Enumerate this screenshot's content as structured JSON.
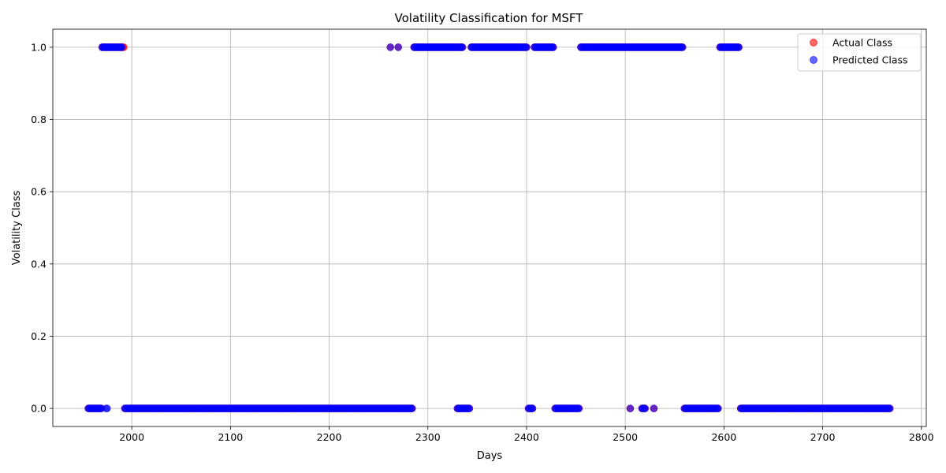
{
  "chart_data": {
    "type": "scatter",
    "title": "Volatility Classification for MSFT",
    "xlabel": "Days",
    "ylabel": "Volatility Class",
    "xlim": [
      1920,
      2805
    ],
    "ylim": [
      -0.05,
      1.05
    ],
    "x_ticks": [
      2000,
      2100,
      2200,
      2300,
      2400,
      2500,
      2600,
      2700,
      2800
    ],
    "y_ticks": [
      0.0,
      0.2,
      0.4,
      0.6,
      0.8,
      1.0
    ],
    "x_tick_labels": [
      "2000",
      "2100",
      "2200",
      "2300",
      "2400",
      "2500",
      "2600",
      "2700",
      "2800"
    ],
    "y_tick_labels": [
      "0.0",
      "0.2",
      "0.4",
      "0.6",
      "0.8",
      "1.0"
    ],
    "grid": true,
    "legend_position": "top-right",
    "series": [
      {
        "name": "Actual Class",
        "color": "#ff0000",
        "alpha": 0.6,
        "segments": [
          {
            "y": 0,
            "from": 1956,
            "to": 1969
          },
          {
            "y": 1,
            "from": 1970,
            "to": 1992
          },
          {
            "y": 0,
            "from": 1993,
            "to": 2284
          },
          {
            "y": 1,
            "from": 2262,
            "to": 2262
          },
          {
            "y": 1,
            "from": 2270,
            "to": 2270
          },
          {
            "y": 1,
            "from": 2286,
            "to": 2335
          },
          {
            "y": 0,
            "from": 2330,
            "to": 2342
          },
          {
            "y": 1,
            "from": 2344,
            "to": 2400
          },
          {
            "y": 0,
            "from": 2402,
            "to": 2406
          },
          {
            "y": 1,
            "from": 2408,
            "to": 2427
          },
          {
            "y": 0,
            "from": 2429,
            "to": 2453
          },
          {
            "y": 1,
            "from": 2455,
            "to": 2558
          },
          {
            "y": 0,
            "from": 2505,
            "to": 2505
          },
          {
            "y": 0,
            "from": 2517,
            "to": 2520
          },
          {
            "y": 0,
            "from": 2529,
            "to": 2529
          },
          {
            "y": 0,
            "from": 2560,
            "to": 2594
          },
          {
            "y": 1,
            "from": 2596,
            "to": 2615
          },
          {
            "y": 0,
            "from": 2617,
            "to": 2768
          }
        ]
      },
      {
        "name": "Predicted Class",
        "color": "#0000ff",
        "alpha": 0.6,
        "segments": [
          {
            "y": 0,
            "from": 1956,
            "to": 1969
          },
          {
            "y": 1,
            "from": 1970,
            "to": 1990
          },
          {
            "y": 0,
            "from": 1974,
            "to": 1975
          },
          {
            "y": 0,
            "from": 1993,
            "to": 2284
          },
          {
            "y": 1,
            "from": 2262,
            "to": 2262
          },
          {
            "y": 1,
            "from": 2270,
            "to": 2270
          },
          {
            "y": 1,
            "from": 2286,
            "to": 2335
          },
          {
            "y": 0,
            "from": 2330,
            "to": 2342
          },
          {
            "y": 1,
            "from": 2344,
            "to": 2400
          },
          {
            "y": 0,
            "from": 2402,
            "to": 2406
          },
          {
            "y": 1,
            "from": 2408,
            "to": 2427
          },
          {
            "y": 0,
            "from": 2429,
            "to": 2453
          },
          {
            "y": 1,
            "from": 2455,
            "to": 2558
          },
          {
            "y": 0,
            "from": 2505,
            "to": 2505
          },
          {
            "y": 0,
            "from": 2517,
            "to": 2520
          },
          {
            "y": 0,
            "from": 2529,
            "to": 2529
          },
          {
            "y": 0,
            "from": 2560,
            "to": 2594
          },
          {
            "y": 1,
            "from": 2596,
            "to": 2615
          },
          {
            "y": 0,
            "from": 2617,
            "to": 2768
          }
        ]
      }
    ]
  }
}
